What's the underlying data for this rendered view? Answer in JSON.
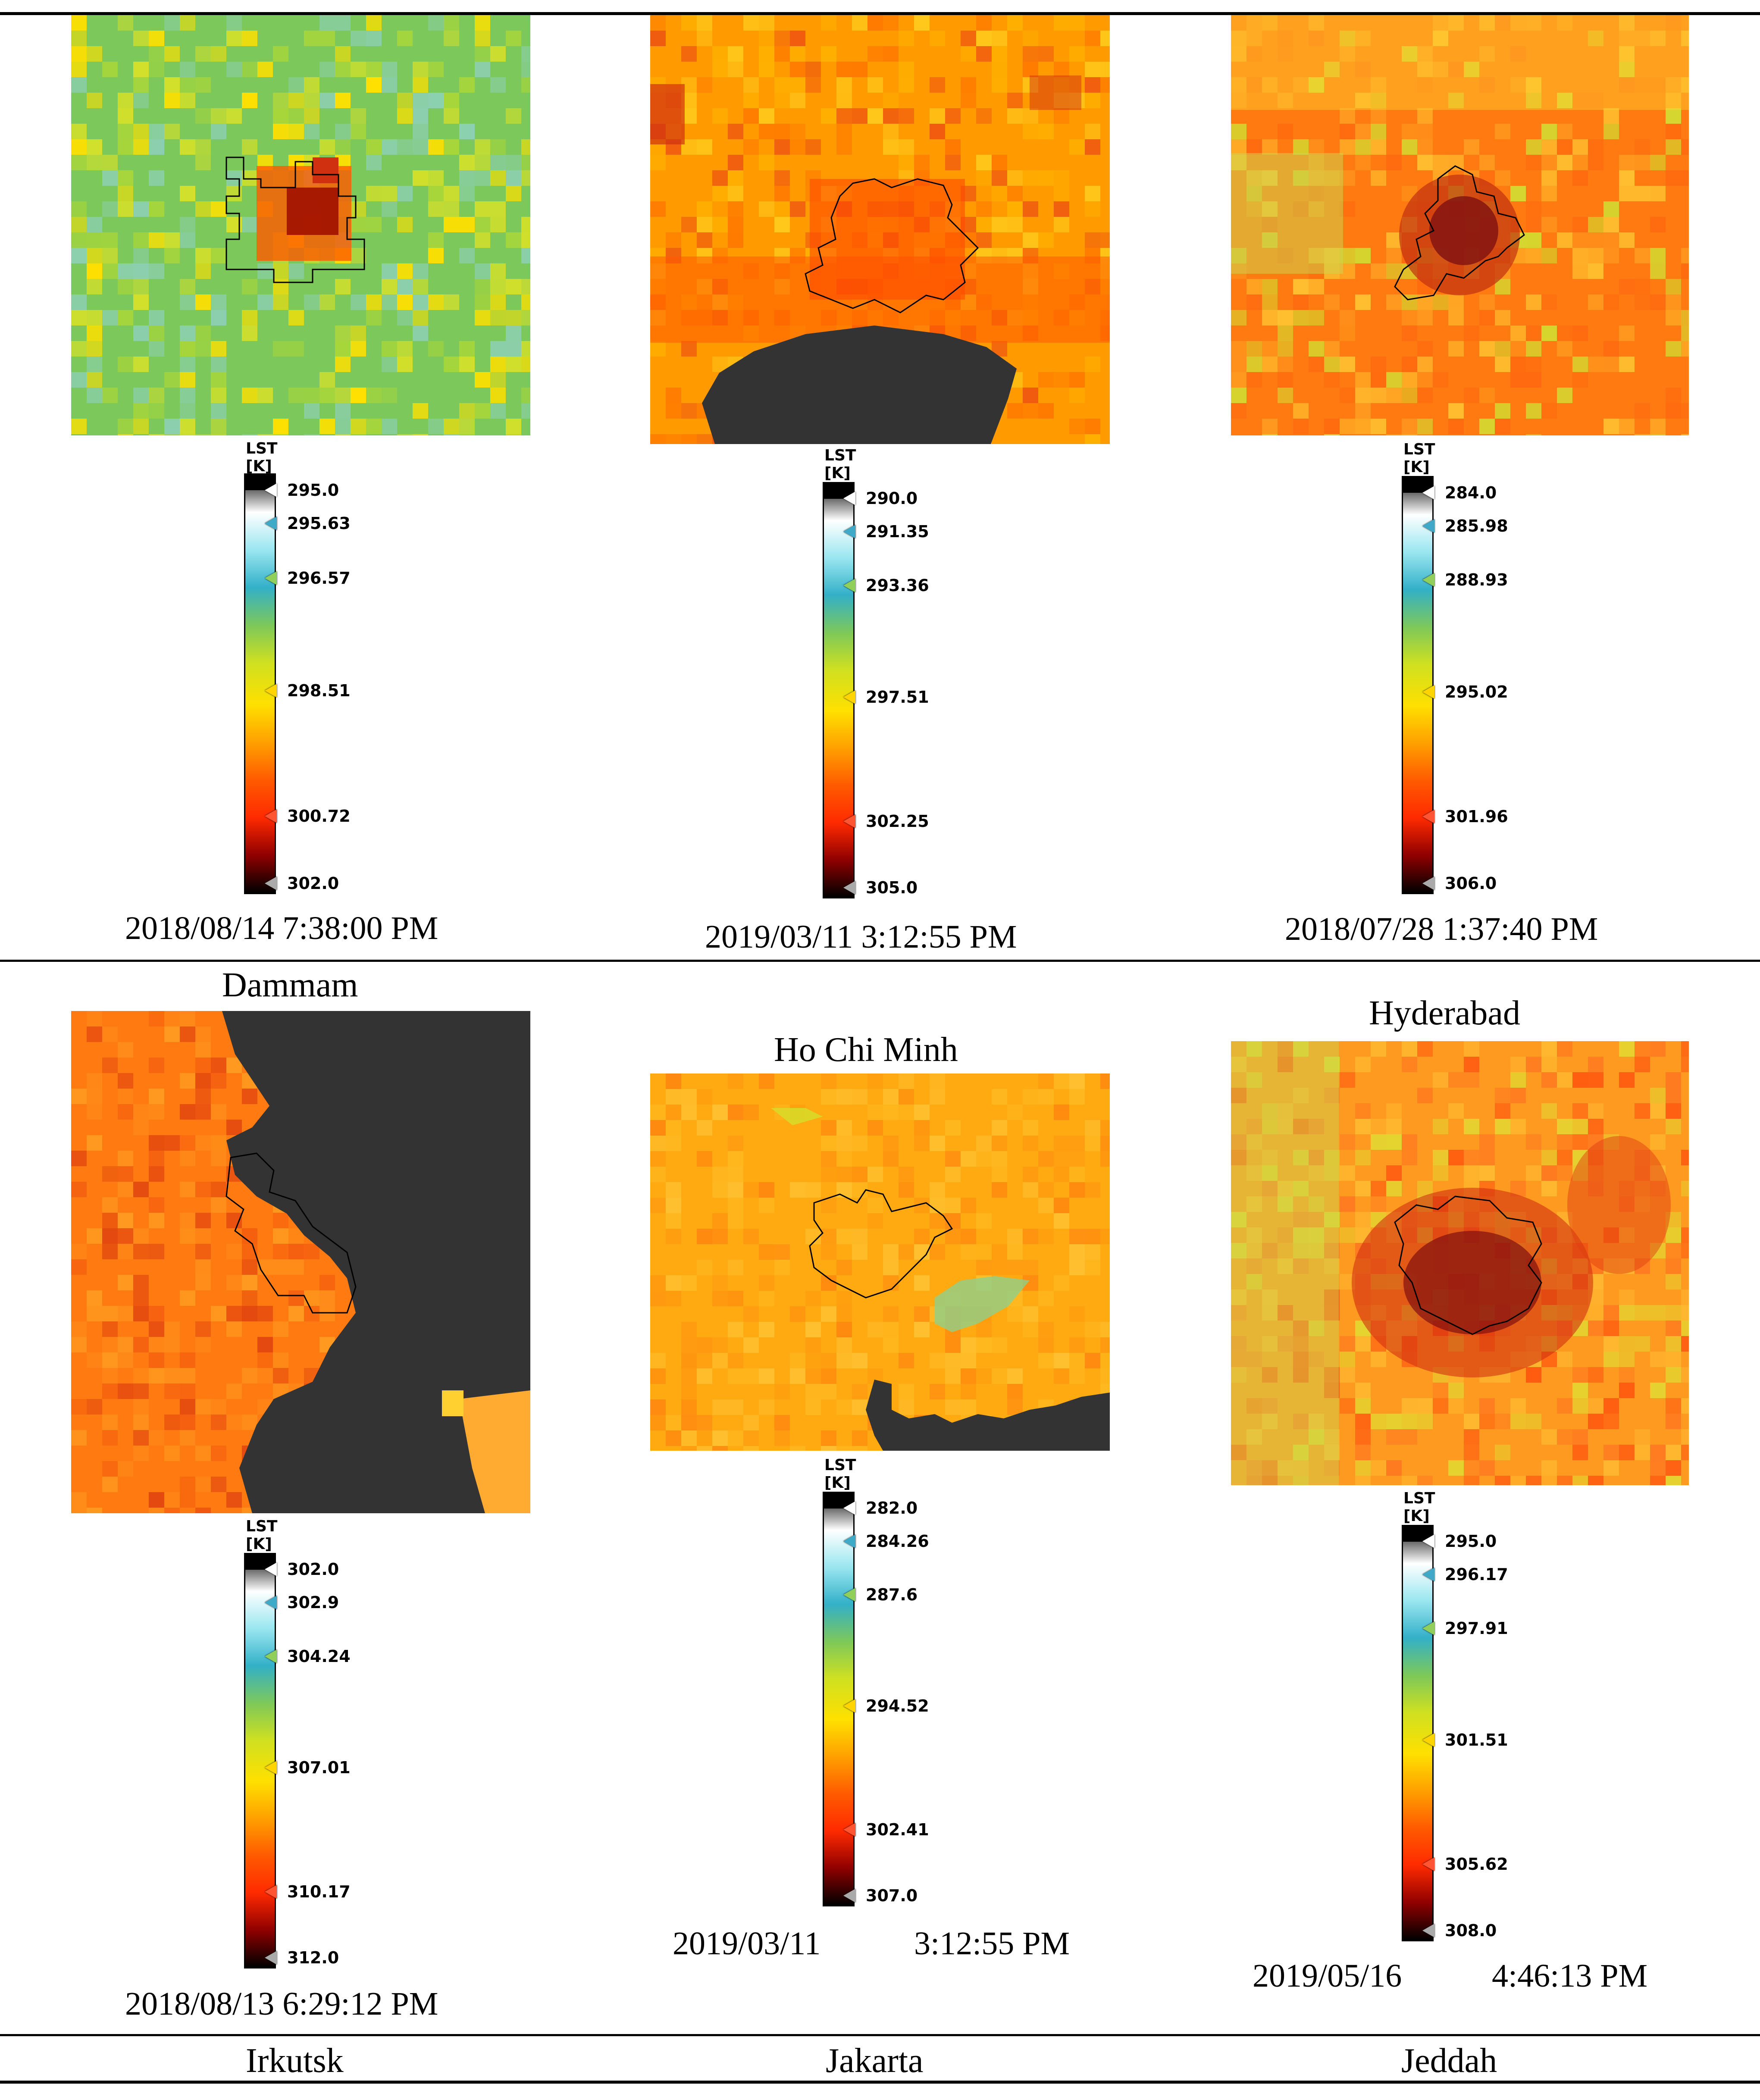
{
  "colorbar_title": "LST [K]",
  "colormap_stops": [
    "#000000",
    "#ffffff",
    "#9ae6f0",
    "#33b0c8",
    "#7cc85a",
    "#cfe020",
    "#ffe000",
    "#ffa000",
    "#ff5a00",
    "#ff2a00",
    "#900000",
    "#000000"
  ],
  "marker_colors": [
    "#ffffff",
    "#3fa9c8",
    "#8fcf5a",
    "#ffd400",
    "#ff5533",
    "#aaaaaa"
  ],
  "panels": [
    {
      "id": "p1",
      "palette": [
        "#7cc85a",
        "#a8d63a",
        "#d4e02a",
        "#ffe000",
        "#8ccfb0"
      ],
      "ticks": [
        "295.0",
        "295.63",
        "296.57",
        "298.51",
        "300.72",
        "302.0"
      ],
      "date": "2018/08/14 7:38:00 PM"
    },
    {
      "id": "p2",
      "palette": [
        "#ff9a00",
        "#ffb000",
        "#ffc81a",
        "#ff7a00",
        "#f05a10"
      ],
      "ticks": [
        "290.0",
        "291.35",
        "293.36",
        "297.51",
        "302.25",
        "305.0"
      ],
      "date": "2019/03/11 3:12:55 PM"
    },
    {
      "id": "p3",
      "palette": [
        "#ff7a10",
        "#ff9a20",
        "#ffc030",
        "#d4d830",
        "#ff6a10"
      ],
      "ticks": [
        "284.0",
        "285.98",
        "288.93",
        "295.02",
        "301.96",
        "306.0"
      ],
      "date": "2018/07/28 1:37:40 PM"
    },
    {
      "id": "p4",
      "palette": [
        "#ff7a10",
        "#f55f10",
        "#ff8c1a",
        "#e44a10",
        "#ff9a20"
      ],
      "ticks": [
        "302.0",
        "302.9",
        "304.24",
        "307.01",
        "310.17",
        "312.0"
      ],
      "date": "2018/08/13 6:29:12 PM"
    },
    {
      "id": "p5",
      "palette": [
        "#ffaa10",
        "#ff9a10",
        "#ffb820",
        "#ff8a10",
        "#ffc030"
      ],
      "ticks": [
        "282.0",
        "284.26",
        "287.6",
        "294.52",
        "302.41",
        "307.0"
      ],
      "date_part1": "2019/03/11",
      "date_part2": "3:12:55 PM"
    },
    {
      "id": "p6",
      "palette": [
        "#ff9a20",
        "#ff7a20",
        "#ffb830",
        "#e4d430",
        "#ff5a10"
      ],
      "ticks": [
        "295.0",
        "296.17",
        "297.91",
        "301.51",
        "305.62",
        "308.0"
      ],
      "date_part1": "2019/05/16",
      "date_part2": "4:46:13 PM"
    }
  ],
  "city_labels": {
    "dammam": "Dammam",
    "ho_chi_minh": "Ho Chi Minh",
    "hyderabad": "Hyderabad",
    "irkutsk": "Irkutsk",
    "jakarta": "Jakarta",
    "jeddah": "Jeddah"
  }
}
